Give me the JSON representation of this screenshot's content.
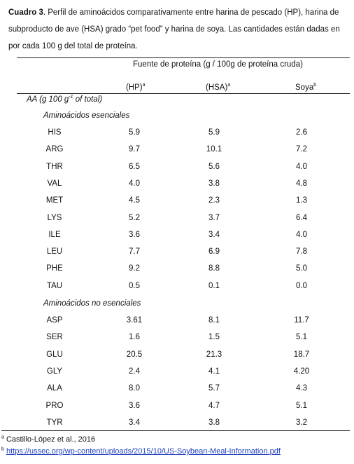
{
  "caption": {
    "label": "Cuadro 3",
    "line1": ". Perfil de aminoácidos comparativamente entre harina de pescado (HP), harina de",
    "line2": "subproducto de ave (HSA) grado “pet food” y harina de soya. Las cantidades están dadas en",
    "line3": "por cada 100 g del total de proteína."
  },
  "table": {
    "group_header": "Fuente de proteína (g / 100g de proteína cruda)",
    "columns": [
      {
        "label": "(HP)",
        "sup": "a"
      },
      {
        "label": "(HSA)",
        "sup": "a"
      },
      {
        "label": "Soya",
        "sup": "b"
      }
    ],
    "row_header": {
      "prefix": "AA (g 100 g",
      "sup": "-1",
      "suffix": " of total)"
    },
    "sections": [
      {
        "title": "Aminoácidos esenciales",
        "rows": [
          {
            "aa": "HIS",
            "hp": "5.9",
            "hsa": "5.9",
            "soya": "2.6"
          },
          {
            "aa": "ARG",
            "hp": "9.7",
            "hsa": "10.1",
            "soya": "7.2"
          },
          {
            "aa": "THR",
            "hp": "6.5",
            "hsa": "5.6",
            "soya": "4.0"
          },
          {
            "aa": "VAL",
            "hp": "4.0",
            "hsa": "3.8",
            "soya": "4.8"
          },
          {
            "aa": "MET",
            "hp": "4.5",
            "hsa": "2.3",
            "soya": "1.3"
          },
          {
            "aa": "LYS",
            "hp": "5.2",
            "hsa": "3.7",
            "soya": "6.4"
          },
          {
            "aa": "ILE",
            "hp": "3.6",
            "hsa": "3.4",
            "soya": "4.0"
          },
          {
            "aa": "LEU",
            "hp": "7.7",
            "hsa": "6.9",
            "soya": "7.8"
          },
          {
            "aa": "PHE",
            "hp": "9.2",
            "hsa": "8.8",
            "soya": "5.0"
          },
          {
            "aa": "TAU",
            "hp": "0.5",
            "hsa": "0.1",
            "soya": "0.0"
          }
        ]
      },
      {
        "title": "Aminoácidos no esenciales",
        "rows": [
          {
            "aa": "ASP",
            "hp": "3.61",
            "hsa": "8.1",
            "soya": "11.7"
          },
          {
            "aa": "SER",
            "hp": "1.6",
            "hsa": "1.5",
            "soya": "5.1"
          },
          {
            "aa": "GLU",
            "hp": "20.5",
            "hsa": "21.3",
            "soya": "18.7"
          },
          {
            "aa": "GLY",
            "hp": "2.4",
            "hsa": "4.1",
            "soya": "4.20"
          },
          {
            "aa": "ALA",
            "hp": "8.0",
            "hsa": "5.7",
            "soya": "4.3"
          },
          {
            "aa": "PRO",
            "hp": "3.6",
            "hsa": "4.7",
            "soya": "5.1"
          },
          {
            "aa": "TYR",
            "hp": "3.4",
            "hsa": "3.8",
            "soya": "3.2"
          }
        ]
      }
    ]
  },
  "footnotes": {
    "a": {
      "marker": "a",
      "text": "Castillo-López et al., 2016"
    },
    "b": {
      "marker": "b",
      "link": "https://ussec.org/wp-content/uploads/2015/10/US-Soybean-Meal-Information.pdf"
    }
  },
  "colors": {
    "link": "#1f3fbf",
    "text": "#111111",
    "rule": "#222222"
  }
}
